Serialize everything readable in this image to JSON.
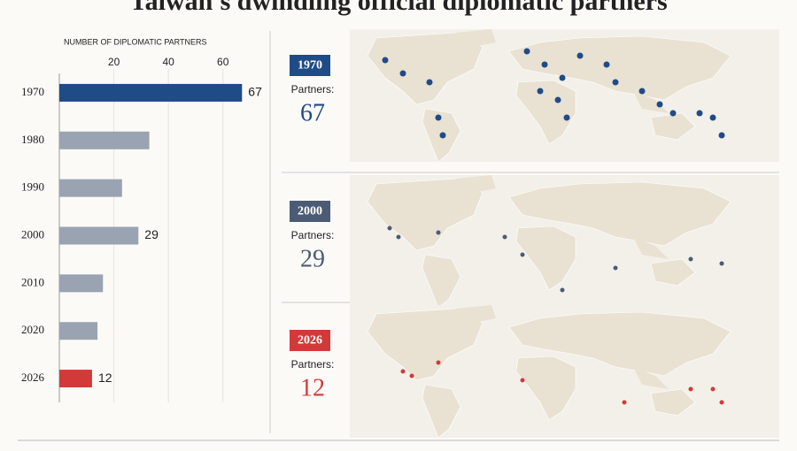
{
  "chart_data": {
    "type": "bar",
    "orientation": "horizontal",
    "title": "Taiwan's dwindling official diplomatic partners",
    "x_label": "NUMBER OF DIPLOMATIC PARTNERS",
    "categories": [
      "1970",
      "1980",
      "1990",
      "2000",
      "2010",
      "2020",
      "2026"
    ],
    "values": [
      67,
      33,
      23,
      29,
      16,
      14,
      12
    ],
    "value_labels": [
      "67",
      null,
      null,
      "29",
      null,
      null,
      "12"
    ],
    "colors": [
      "#1f4b87",
      "#9aa3b1",
      "#9aa3b1",
      "#9aa3b1",
      "#9aa3b1",
      "#9aa3b1",
      "#d23a3a"
    ],
    "xlim": [
      0,
      76
    ],
    "xticks": [
      20,
      40,
      60
    ],
    "grid": true
  },
  "panels": {
    "label": "Partners:",
    "items": [
      {
        "category": 0,
        "color": "#1f4b87"
      },
      {
        "category": 3,
        "color": "#4b5b74"
      },
      {
        "category": 6,
        "color": "#d23a3a"
      }
    ]
  }
}
